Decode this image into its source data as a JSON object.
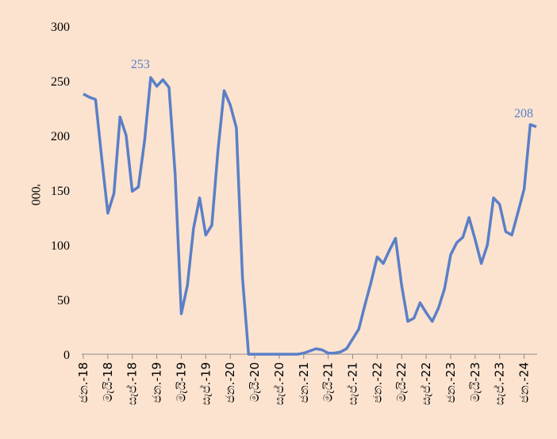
{
  "chart_data": {
    "type": "line",
    "title": "",
    "xlabel": "",
    "ylabel": "'000",
    "ylim": [
      0,
      300
    ],
    "yticks": [
      0,
      50,
      100,
      150,
      200,
      250,
      300
    ],
    "grid": false,
    "legend": "none",
    "line_color": "#5b7fc7",
    "x_tick_labels": [
      "ජන.-18",
      "මැයි-18",
      "සැප්.-18",
      "ජන.-19",
      "මැයි-19",
      "සැප්.-19",
      "ජන.-20",
      "මැයි-20",
      "සැප්.-20",
      "ජන.-21",
      "මැයි-21",
      "සැප්.-21",
      "ජන.-22",
      "මැයි-22",
      "සැප්.-22",
      "ජන.-23",
      "මැයි-23",
      "සැප්.-23",
      "ජන.-24"
    ],
    "series": [
      {
        "values": [
          238,
          235,
          233,
          180,
          129,
          147,
          217,
          200,
          149,
          153,
          195,
          253,
          245,
          251,
          244,
          165,
          37,
          63,
          115,
          143,
          109,
          118,
          187,
          241,
          228,
          207,
          70,
          0,
          0,
          0,
          0,
          0,
          0,
          0,
          0,
          0,
          1,
          3,
          5,
          4,
          1,
          1,
          2,
          5,
          14,
          23,
          45,
          66,
          89,
          83,
          95,
          106,
          63,
          30,
          33,
          47,
          38,
          30,
          42,
          60,
          91,
          102,
          107,
          125,
          105,
          83,
          100,
          143,
          137,
          112,
          109,
          130,
          151,
          210,
          208
        ],
        "annotations": [
          {
            "index": 11,
            "label": "253"
          },
          {
            "index": 74,
            "label": "208"
          }
        ]
      }
    ]
  }
}
